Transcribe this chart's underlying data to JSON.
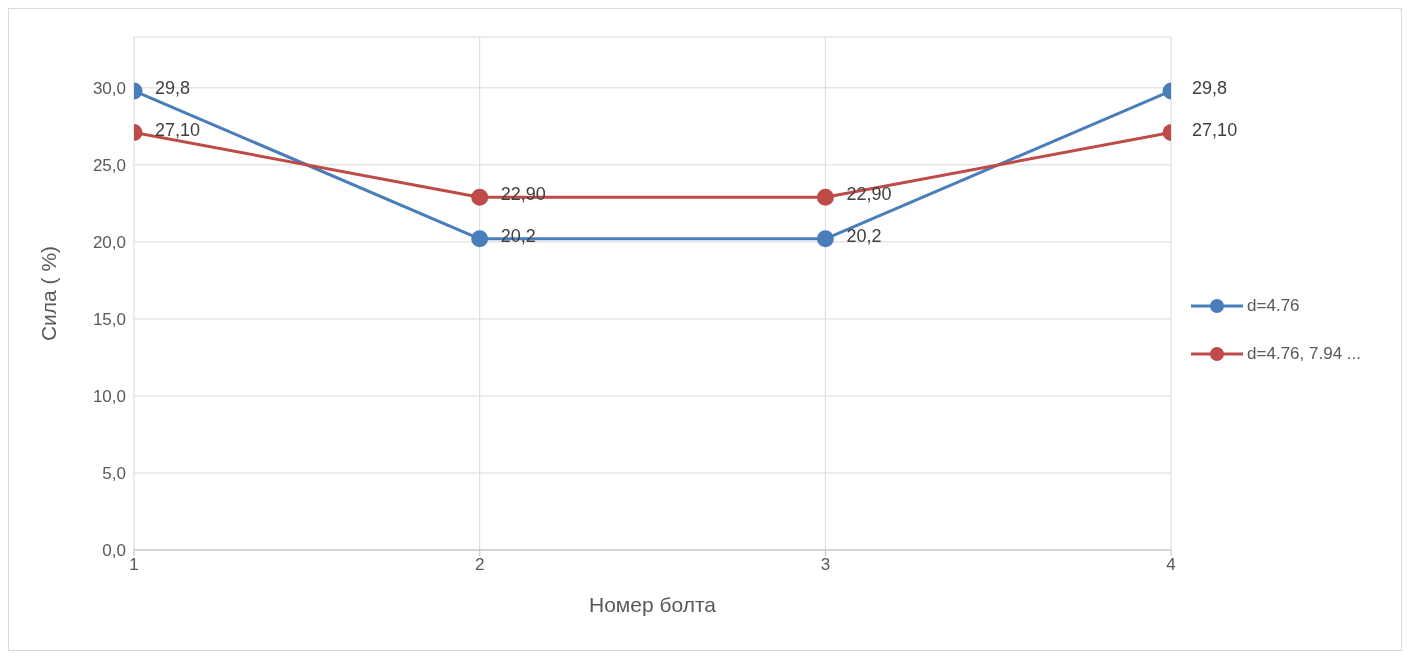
{
  "chart_data": {
    "type": "line",
    "xlabel": "Номер болта",
    "ylabel": "Сила ( %)",
    "x": [
      1,
      2,
      3,
      4
    ],
    "xlim": [
      1,
      4
    ],
    "xticks": [
      1,
      2,
      3,
      4
    ],
    "ylim": [
      0,
      33.3
    ],
    "yticks": [
      {
        "value": 0,
        "label": "0,0"
      },
      {
        "value": 5,
        "label": "5,0"
      },
      {
        "value": 10,
        "label": "10,0"
      },
      {
        "value": 15,
        "label": "15,0"
      },
      {
        "value": 20,
        "label": "20,0"
      },
      {
        "value": 25,
        "label": "25,0"
      },
      {
        "value": 30,
        "label": "30,0"
      }
    ],
    "grid": true,
    "legend": "right",
    "marker": "circle",
    "line_style": "solid",
    "series": [
      {
        "name": "d=4.76",
        "color": "#4a7ebb",
        "values": [
          29.8,
          20.2,
          20.2,
          29.8
        ],
        "value_labels": [
          "29,8",
          "20,2",
          "20,2",
          "29,8"
        ]
      },
      {
        "name": "d=4.76, 7.94 ...",
        "color": "#be4b48",
        "values": [
          27.1,
          22.9,
          22.9,
          27.1
        ],
        "value_labels": [
          "27,10",
          "22,90",
          "22,90",
          "27,10"
        ]
      }
    ]
  }
}
